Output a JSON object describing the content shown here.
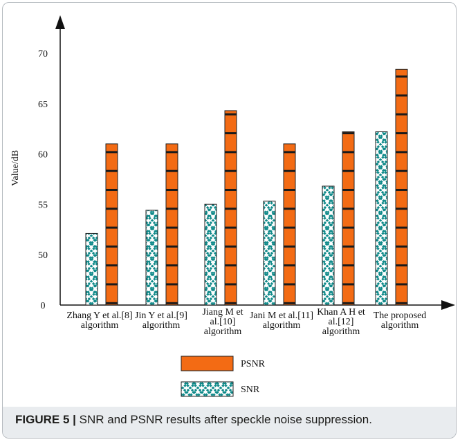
{
  "caption": {
    "label": "FIGURE 5 |",
    "text": " SNR and PSNR results after speckle noise suppression."
  },
  "chart_data": {
    "type": "bar",
    "title": "",
    "xlabel": "",
    "ylabel": "Value/dB",
    "y_ticks": [
      "0",
      "50",
      "55",
      "60",
      "65",
      "70"
    ],
    "ylim_note": "broken axis: 0 then 50 to 70",
    "categories": [
      [
        "Zhang Y et al.[8]",
        "algorithm"
      ],
      [
        "Jin Y et al.[9]",
        "algorithm"
      ],
      [
        "Jiang M et",
        "al.[10]",
        "algorithm"
      ],
      [
        "Jani M et al.[11]",
        "algorithm"
      ],
      [
        "Khan A H et",
        "al.[12]",
        "algorithm"
      ],
      [
        "The proposed",
        "algorithm"
      ]
    ],
    "series": [
      {
        "name": "SNR",
        "values": [
          52.1,
          54.4,
          55.0,
          55.3,
          56.8,
          62.2
        ],
        "color": "#0f8a8a",
        "pattern": "cross-hatch"
      },
      {
        "name": "PSNR",
        "values": [
          61.0,
          61.0,
          64.3,
          61.0,
          62.2,
          68.4
        ],
        "color": "#f36b14",
        "pattern": "horizontal-bands"
      }
    ],
    "legend": [
      "PSNR",
      "SNR"
    ],
    "legend_position": "bottom-center",
    "grid": false
  }
}
